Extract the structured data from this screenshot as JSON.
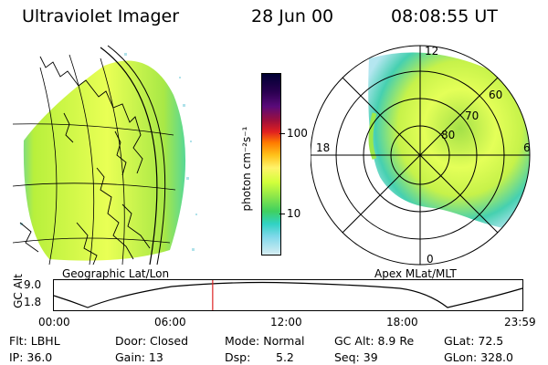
{
  "header": {
    "title": "Ultraviolet Imager",
    "date": "28 Jun 00",
    "time": "08:08:55 UT"
  },
  "left_panel": {
    "caption": "Geographic Lat/Lon"
  },
  "right_panel": {
    "caption": "Apex MLat/MLT",
    "mlt_labels": [
      "12",
      "18",
      "6",
      "0"
    ],
    "lat_labels": [
      "60",
      "70",
      "80"
    ]
  },
  "colorbar": {
    "unit_label": "photon cm⁻²s⁻¹",
    "ticks": [
      "100",
      "10"
    ],
    "colors": [
      "#000033",
      "#2a0050",
      "#5a0a7a",
      "#a0103a",
      "#e02020",
      "#ff7a00",
      "#ffc21a",
      "#fff36a",
      "#d2ff3a",
      "#8be64a",
      "#3fd060",
      "#30d2c4",
      "#7fd8ea",
      "#d6edf2"
    ]
  },
  "timeline": {
    "ylabel": "GC Alt",
    "y_ticks": [
      "9.0",
      "1.8"
    ],
    "x_ticks": [
      "00:00",
      "06:00",
      "12:00",
      "18:00",
      "23:59"
    ],
    "marker_time": "08:08",
    "marker_color": "#dd2222"
  },
  "meta": {
    "flt": "Flt: LBHL",
    "ip": "IP: 36.0",
    "door": "Door: Closed",
    "gain": "Gain: 13",
    "mode": "Mode: Normal",
    "dsp_label": "Dsp:",
    "dsp_value": "5.2",
    "gc_alt": "GC Alt: 8.9 Re",
    "seq": "Seq: 39",
    "glat": "GLat:  72.5",
    "glon": "GLon: 328.0"
  }
}
